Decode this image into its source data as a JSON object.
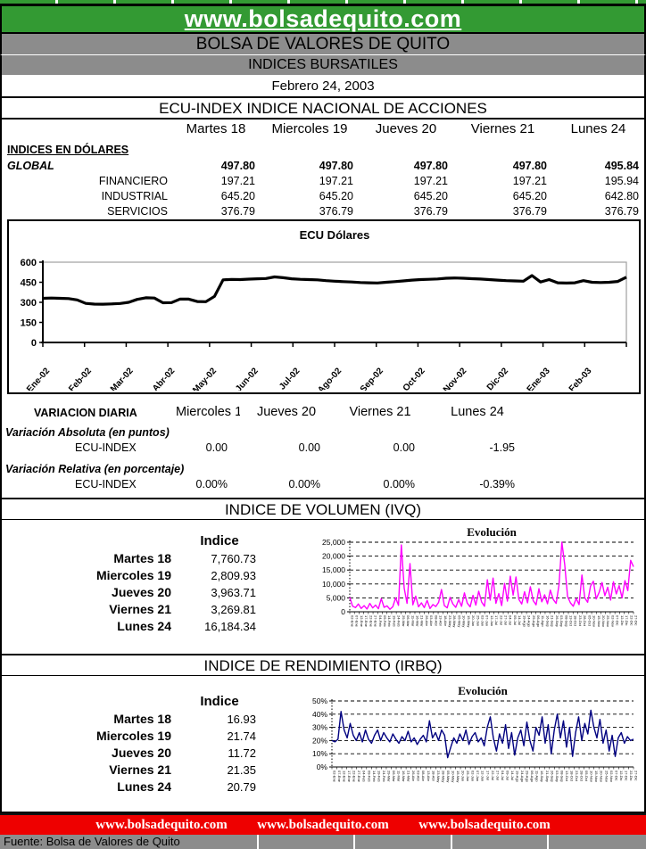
{
  "banner": {
    "url": "www.bolsadequito.com",
    "org": "BOLSA DE VALORES DE QUITO",
    "subtitle": "INDICES BURSATILES",
    "date": "Febrero 24, 2003"
  },
  "colors": {
    "banner_green": "#339A33",
    "bar_gray": "#8C8C8C",
    "footer_red": "#EE0000",
    "ecu_line": "#000000",
    "ivq_line": "#FF00FF",
    "irbq_line": "#000080"
  },
  "ecu_index": {
    "title": "ECU-INDEX  INDICE NACIONAL DE ACCIONES",
    "columns": [
      "Martes 18",
      "Miercoles 19",
      "Jueves 20",
      "Viernes 21",
      "Lunes 24"
    ],
    "section_label": "INDICES EN DÓLARES",
    "rows": [
      {
        "label": "GLOBAL",
        "bold": true,
        "values": [
          "497.80",
          "497.80",
          "497.80",
          "497.80",
          "495.84"
        ]
      },
      {
        "label": "FINANCIERO",
        "bold": false,
        "values": [
          "197.21",
          "197.21",
          "197.21",
          "197.21",
          "195.94"
        ]
      },
      {
        "label": "INDUSTRIAL",
        "bold": false,
        "values": [
          "645.20",
          "645.20",
          "645.20",
          "645.20",
          "642.80"
        ]
      },
      {
        "label": "SERVICIOS",
        "bold": false,
        "values": [
          "376.79",
          "376.79",
          "376.79",
          "376.79",
          "376.79"
        ]
      }
    ]
  },
  "variacion": {
    "title": "VARIACION DIARIA",
    "columns": [
      "Miercoles 19",
      "Jueves 20",
      "Viernes 21",
      "Lunes 24"
    ],
    "groups": [
      {
        "label": "Variación Absoluta (en puntos)",
        "row_label": "ECU-INDEX",
        "values": [
          "0.00",
          "0.00",
          "0.00",
          "-1.95"
        ]
      },
      {
        "label": "Variación Relativa (en porcentaje)",
        "row_label": "ECU-INDEX",
        "values": [
          "0.00%",
          "0.00%",
          "0.00%",
          "-0.39%"
        ]
      }
    ]
  },
  "ivq": {
    "title": "INDICE DE VOLUMEN (IVQ)",
    "col_header": "Indice",
    "rows": [
      {
        "label": "Martes 18",
        "value": "7,760.73"
      },
      {
        "label": "Miercoles 19",
        "value": "2,809.93"
      },
      {
        "label": "Jueves 20",
        "value": "3,963.71"
      },
      {
        "label": "Viernes 21",
        "value": "3,269.81"
      },
      {
        "label": "Lunes 24",
        "value": "16,184.34"
      }
    ]
  },
  "irbq": {
    "title": "INDICE DE RENDIMIENTO (IRBQ)",
    "col_header": "Indice",
    "rows": [
      {
        "label": "Martes 18",
        "value": "16.93"
      },
      {
        "label": "Miercoles 19",
        "value": "21.74"
      },
      {
        "label": "Jueves 20",
        "value": "11.72"
      },
      {
        "label": "Viernes 21",
        "value": "21.35"
      },
      {
        "label": "Lunes 24",
        "value": "20.79"
      }
    ]
  },
  "footer": {
    "url": "www.bolsadequito.com",
    "fuente": "Fuente: Bolsa de Valores de Quito"
  },
  "chart_data": [
    {
      "id": "ecu",
      "type": "line",
      "title": "ECU Dólares",
      "ylabel": "",
      "ylim": [
        0,
        600
      ],
      "y_ticks": [
        0,
        150,
        300,
        450,
        600
      ],
      "y_tick_labels": [
        "0",
        "150",
        "300",
        "450",
        "600"
      ],
      "x_tick_labels": [
        "Ene-02",
        "Feb-02",
        "Mar-02",
        "Abr-02",
        "May-02",
        "Jun-02",
        "Jul-02",
        "Ago-02",
        "Sep-02",
        "Oct-02",
        "Nov-02",
        "Dic-02",
        "Ene-03",
        "Feb-03"
      ],
      "line_color": "#000000",
      "grid": "top gridline only, gray plot border",
      "values": [
        330,
        332,
        330,
        328,
        318,
        292,
        287,
        286,
        288,
        291,
        300,
        322,
        334,
        332,
        297,
        298,
        325,
        324,
        306,
        305,
        345,
        468,
        471,
        470,
        473,
        476,
        478,
        490,
        484,
        476,
        472,
        470,
        468,
        462,
        458,
        455,
        452,
        448,
        446,
        445,
        450,
        455,
        460,
        466,
        470,
        472,
        475,
        480,
        482,
        480,
        477,
        474,
        470,
        466,
        462,
        460,
        458,
        500,
        452,
        470,
        446,
        444,
        446,
        462,
        450,
        448,
        450,
        456,
        488
      ]
    },
    {
      "id": "ivq_evolucion",
      "type": "line",
      "title": "Evolución",
      "ylim": [
        0,
        25000
      ],
      "y_ticks": [
        0,
        5000,
        10000,
        15000,
        20000,
        25000
      ],
      "y_tick_labels": [
        "0",
        "5,000",
        "10,000",
        "15,000",
        "20,000",
        "25,000"
      ],
      "x_ticks_note": "daily date labels, illegible at this scale",
      "line_color": "#FF00FF",
      "grid": "dashed horizontal gridlines",
      "values": [
        5200,
        2000,
        1500,
        2800,
        1200,
        2200,
        1000,
        3000,
        1400,
        2400,
        1100,
        4700,
        1600,
        2100,
        900,
        1800,
        5000,
        2300,
        24000,
        8500,
        3000,
        17300,
        2500,
        5600,
        1800,
        3200,
        1500,
        4100,
        1200,
        2600,
        1900,
        3400,
        8000,
        2200,
        1400,
        5200,
        2800,
        1600,
        4400,
        2000,
        6800,
        3100,
        1800,
        5900,
        2400,
        7400,
        3500,
        2000,
        11500,
        4200,
        12100,
        3000,
        6500,
        2200,
        10200,
        3800,
        12800,
        6000,
        12500,
        4500,
        2800,
        7200,
        3200,
        9000,
        4000,
        2500,
        8300,
        3600,
        6100,
        2900,
        7800,
        4400,
        3000,
        9600,
        25000,
        17000,
        5500,
        3200,
        2000,
        4800,
        2600,
        13200,
        5000,
        3400,
        9200,
        11000,
        4600,
        7000,
        10500,
        5800,
        8800,
        4200,
        10800,
        6400,
        9400,
        5000,
        11200,
        7600,
        18500,
        16200
      ]
    },
    {
      "id": "irbq_evolucion",
      "type": "line",
      "title": "Evolución",
      "ylim": [
        0,
        50
      ],
      "y_ticks": [
        0,
        10,
        20,
        30,
        40,
        50
      ],
      "y_tick_labels": [
        "0%",
        "10%",
        "20%",
        "30%",
        "40%",
        "50%"
      ],
      "x_ticks_note": "daily date labels, illegible at this scale",
      "line_color": "#000080",
      "grid": "dashed horizontal gridlines",
      "values": [
        20,
        19,
        21,
        42,
        28,
        22,
        33,
        24,
        20,
        26,
        19,
        28,
        21,
        18,
        24,
        28,
        20,
        26,
        22,
        19,
        25,
        21,
        18,
        23,
        20,
        27,
        19,
        22,
        17,
        21,
        24,
        19,
        35,
        22,
        26,
        20,
        28,
        24,
        7,
        15,
        22,
        18,
        25,
        20,
        28,
        17,
        23,
        26,
        19,
        22,
        16,
        30,
        38,
        22,
        12,
        25,
        18,
        32,
        14,
        26,
        9,
        22,
        28,
        16,
        34,
        20,
        12,
        30,
        24,
        38,
        18,
        32,
        10,
        28,
        40,
        22,
        35,
        15,
        30,
        8,
        26,
        38,
        20,
        33,
        25,
        43,
        30,
        22,
        36,
        18,
        28,
        12,
        24,
        8,
        22,
        26,
        18,
        23,
        20,
        21
      ]
    }
  ]
}
